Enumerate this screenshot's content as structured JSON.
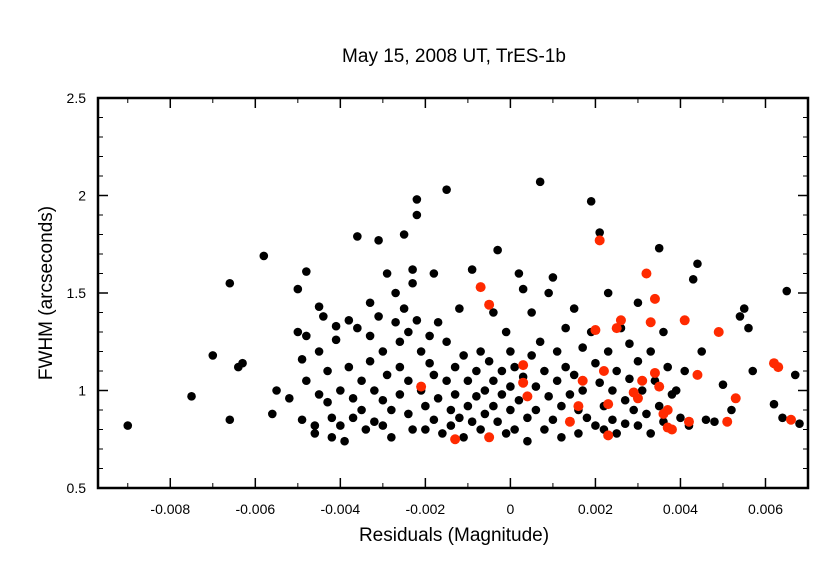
{
  "chart_data": {
    "type": "scatter",
    "title": "May 15, 2008 UT, TrES-1b",
    "xlabel": "Residuals (Magnitude)",
    "ylabel": "FWHM (arcseconds)",
    "xlim": [
      -0.0097,
      0.007
    ],
    "ylim": [
      0.5,
      2.5
    ],
    "x_ticks": [
      -0.008,
      -0.006,
      -0.004,
      -0.002,
      0,
      0.002,
      0.004,
      0.006
    ],
    "x_tick_labels": [
      "-0.008",
      "-0.006",
      "-0.004",
      "-0.002",
      "0",
      "0.002",
      "0.004",
      "0.006"
    ],
    "y_ticks": [
      0.5,
      1,
      1.5,
      2,
      2.5
    ],
    "y_tick_labels": [
      "0.5",
      "1",
      "1.5",
      "2",
      "2.5"
    ],
    "grid": false,
    "colors": {
      "black_series": "#000000",
      "red_series": "#ff2a00"
    },
    "series": [
      {
        "color": "#000000",
        "points": [
          [
            -0.009,
            0.82
          ],
          [
            -0.0075,
            0.97
          ],
          [
            -0.007,
            1.18
          ],
          [
            -0.0066,
            1.55
          ],
          [
            -0.0066,
            0.85
          ],
          [
            -0.0064,
            1.12
          ],
          [
            -0.0063,
            1.14
          ],
          [
            -0.0058,
            1.69
          ],
          [
            -0.0056,
            0.88
          ],
          [
            -0.0055,
            1.0
          ],
          [
            -0.0052,
            0.96
          ],
          [
            -0.005,
            1.52
          ],
          [
            -0.005,
            1.3
          ],
          [
            -0.0049,
            1.16
          ],
          [
            -0.0049,
            0.85
          ],
          [
            -0.0048,
            1.61
          ],
          [
            -0.0048,
            1.28
          ],
          [
            -0.0048,
            1.05
          ],
          [
            -0.0046,
            0.82
          ],
          [
            -0.0046,
            0.78
          ],
          [
            -0.0045,
            1.43
          ],
          [
            -0.0045,
            1.2
          ],
          [
            -0.0045,
            0.98
          ],
          [
            -0.0044,
            1.38
          ],
          [
            -0.0043,
            1.1
          ],
          [
            -0.0043,
            0.94
          ],
          [
            -0.0042,
            0.86
          ],
          [
            -0.0042,
            0.76
          ],
          [
            -0.0041,
            1.33
          ],
          [
            -0.0041,
            1.26
          ],
          [
            -0.004,
            1.0
          ],
          [
            -0.004,
            0.82
          ],
          [
            -0.0039,
            0.74
          ],
          [
            -0.0038,
            1.36
          ],
          [
            -0.0038,
            1.12
          ],
          [
            -0.0037,
            0.96
          ],
          [
            -0.0037,
            0.86
          ],
          [
            -0.0036,
            1.79
          ],
          [
            -0.0036,
            1.32
          ],
          [
            -0.0035,
            1.05
          ],
          [
            -0.0035,
            0.9
          ],
          [
            -0.0034,
            0.8
          ],
          [
            -0.0033,
            1.45
          ],
          [
            -0.0033,
            1.28
          ],
          [
            -0.0033,
            1.15
          ],
          [
            -0.0032,
            1.0
          ],
          [
            -0.0032,
            0.84
          ],
          [
            -0.0031,
            1.77
          ],
          [
            -0.0031,
            1.38
          ],
          [
            -0.003,
            1.2
          ],
          [
            -0.003,
            0.95
          ],
          [
            -0.003,
            0.82
          ],
          [
            -0.0029,
            1.6
          ],
          [
            -0.0029,
            1.08
          ],
          [
            -0.0028,
            0.9
          ],
          [
            -0.0028,
            0.76
          ],
          [
            -0.0027,
            1.5
          ],
          [
            -0.0027,
            1.35
          ],
          [
            -0.0026,
            1.25
          ],
          [
            -0.0026,
            1.12
          ],
          [
            -0.0026,
            0.98
          ],
          [
            -0.0025,
            1.8
          ],
          [
            -0.0025,
            1.42
          ],
          [
            -0.0024,
            1.3
          ],
          [
            -0.0024,
            1.05
          ],
          [
            -0.0024,
            0.88
          ],
          [
            -0.0023,
            1.62
          ],
          [
            -0.0023,
            1.55
          ],
          [
            -0.0023,
            0.8
          ],
          [
            -0.0022,
            1.98
          ],
          [
            -0.0022,
            1.9
          ],
          [
            -0.0022,
            1.36
          ],
          [
            -0.0021,
            1.2
          ],
          [
            -0.0021,
            1.0
          ],
          [
            -0.002,
            0.92
          ],
          [
            -0.002,
            0.8
          ],
          [
            -0.0019,
            1.28
          ],
          [
            -0.0019,
            1.14
          ],
          [
            -0.0018,
            1.6
          ],
          [
            -0.0018,
            1.08
          ],
          [
            -0.0018,
            0.85
          ],
          [
            -0.0017,
            1.35
          ],
          [
            -0.0017,
            0.96
          ],
          [
            -0.0016,
            0.78
          ],
          [
            -0.0015,
            2.03
          ],
          [
            -0.0015,
            1.25
          ],
          [
            -0.0015,
            1.05
          ],
          [
            -0.0014,
            0.9
          ],
          [
            -0.0014,
            0.82
          ],
          [
            -0.0013,
            1.12
          ],
          [
            -0.0013,
            0.98
          ],
          [
            -0.0012,
            1.42
          ],
          [
            -0.0012,
            0.86
          ],
          [
            -0.0011,
            1.18
          ],
          [
            -0.0011,
            0.76
          ],
          [
            -0.001,
            1.05
          ],
          [
            -0.001,
            0.92
          ],
          [
            -0.0009,
            1.62
          ],
          [
            -0.0009,
            0.84
          ],
          [
            -0.0008,
            1.1
          ],
          [
            -0.0008,
            0.97
          ],
          [
            -0.0007,
            1.2
          ],
          [
            -0.0007,
            0.8
          ],
          [
            -0.0006,
            1.0
          ],
          [
            -0.0006,
            0.88
          ],
          [
            -0.0005,
            1.15
          ],
          [
            -0.0005,
            0.76
          ],
          [
            -0.0004,
            1.4
          ],
          [
            -0.0004,
            1.05
          ],
          [
            -0.0004,
            0.92
          ],
          [
            -0.0003,
            1.72
          ],
          [
            -0.0003,
            0.84
          ],
          [
            -0.0002,
            1.1
          ],
          [
            -0.0002,
            0.98
          ],
          [
            -0.0001,
            1.3
          ],
          [
            -0.0001,
            0.78
          ],
          [
            0.0,
            1.2
          ],
          [
            0.0,
            1.02
          ],
          [
            0.0,
            0.9
          ],
          [
            0.0001,
            1.12
          ],
          [
            0.0001,
            0.8
          ],
          [
            0.0002,
            1.6
          ],
          [
            0.0002,
            0.95
          ],
          [
            0.0003,
            1.52
          ],
          [
            0.0003,
            1.07
          ],
          [
            0.0004,
            0.86
          ],
          [
            0.0004,
            0.74
          ],
          [
            0.0005,
            1.4
          ],
          [
            0.0005,
            1.18
          ],
          [
            0.0006,
            1.02
          ],
          [
            0.0006,
            0.9
          ],
          [
            0.0007,
            2.07
          ],
          [
            0.0007,
            1.25
          ],
          [
            0.0008,
            1.1
          ],
          [
            0.0008,
            0.8
          ],
          [
            0.0009,
            1.5
          ],
          [
            0.0009,
            0.97
          ],
          [
            0.001,
            1.58
          ],
          [
            0.001,
            0.85
          ],
          [
            0.0011,
            1.2
          ],
          [
            0.0011,
            1.05
          ],
          [
            0.0012,
            0.92
          ],
          [
            0.0012,
            0.76
          ],
          [
            0.0013,
            1.32
          ],
          [
            0.0013,
            1.12
          ],
          [
            0.0014,
            0.98
          ],
          [
            0.0014,
            0.84
          ],
          [
            0.0015,
            1.42
          ],
          [
            0.0015,
            1.08
          ],
          [
            0.0016,
            0.9
          ],
          [
            0.0016,
            0.78
          ],
          [
            0.0017,
            1.22
          ],
          [
            0.0017,
            1.0
          ],
          [
            0.0018,
            0.86
          ],
          [
            0.0019,
            1.97
          ],
          [
            0.0019,
            1.3
          ],
          [
            0.002,
            1.14
          ],
          [
            0.002,
            0.82
          ],
          [
            0.0021,
            1.81
          ],
          [
            0.0021,
            1.04
          ],
          [
            0.0022,
            0.92
          ],
          [
            0.0022,
            0.8
          ],
          [
            0.0023,
            1.5
          ],
          [
            0.0023,
            1.2
          ],
          [
            0.0024,
            1.0
          ],
          [
            0.0024,
            0.85
          ],
          [
            0.0025,
            1.1
          ],
          [
            0.0025,
            0.78
          ],
          [
            0.0026,
            1.32
          ],
          [
            0.0027,
            0.95
          ],
          [
            0.0027,
            0.83
          ],
          [
            0.0028,
            1.24
          ],
          [
            0.0028,
            1.06
          ],
          [
            0.0029,
            0.9
          ],
          [
            0.003,
            1.45
          ],
          [
            0.003,
            1.15
          ],
          [
            0.003,
            0.82
          ],
          [
            0.0031,
            1.0
          ],
          [
            0.0032,
            0.88
          ],
          [
            0.0033,
            1.2
          ],
          [
            0.0033,
            0.78
          ],
          [
            0.0034,
            1.05
          ],
          [
            0.0035,
            1.73
          ],
          [
            0.0035,
            0.92
          ],
          [
            0.0036,
            1.3
          ],
          [
            0.0036,
            0.84
          ],
          [
            0.0037,
            1.12
          ],
          [
            0.0038,
            0.98
          ],
          [
            0.0039,
            1.0
          ],
          [
            0.004,
            0.86
          ],
          [
            0.0041,
            1.1
          ],
          [
            0.0042,
            0.82
          ],
          [
            0.0043,
            1.57
          ],
          [
            0.0044,
            1.65
          ],
          [
            0.0045,
            1.2
          ],
          [
            0.0046,
            0.85
          ],
          [
            0.0048,
            0.84
          ],
          [
            0.005,
            1.03
          ],
          [
            0.0052,
            0.9
          ],
          [
            0.0054,
            1.38
          ],
          [
            0.0055,
            1.42
          ],
          [
            0.0056,
            1.32
          ],
          [
            0.0057,
            1.1
          ],
          [
            0.0062,
            0.93
          ],
          [
            0.0064,
            0.86
          ],
          [
            0.0065,
            1.51
          ],
          [
            0.0067,
            1.08
          ],
          [
            0.0068,
            0.83
          ]
        ]
      },
      {
        "color": "#ff2a00",
        "points": [
          [
            -0.0021,
            1.02
          ],
          [
            -0.0013,
            0.75
          ],
          [
            -0.0007,
            1.53
          ],
          [
            -0.0005,
            1.44
          ],
          [
            -0.0005,
            0.76
          ],
          [
            0.0003,
            1.13
          ],
          [
            0.0003,
            1.04
          ],
          [
            0.0004,
            0.97
          ],
          [
            0.0014,
            0.84
          ],
          [
            0.0017,
            1.05
          ],
          [
            0.0016,
            0.92
          ],
          [
            0.0021,
            1.77
          ],
          [
            0.002,
            1.31
          ],
          [
            0.0022,
            1.1
          ],
          [
            0.0023,
            0.93
          ],
          [
            0.0023,
            0.77
          ],
          [
            0.0025,
            1.32
          ],
          [
            0.0026,
            1.36
          ],
          [
            0.0029,
            0.99
          ],
          [
            0.003,
            0.96
          ],
          [
            0.0031,
            1.05
          ],
          [
            0.0032,
            1.6
          ],
          [
            0.0033,
            1.35
          ],
          [
            0.0034,
            1.47
          ],
          [
            0.0034,
            1.09
          ],
          [
            0.0035,
            1.02
          ],
          [
            0.0036,
            0.88
          ],
          [
            0.0037,
            0.9
          ],
          [
            0.0037,
            0.81
          ],
          [
            0.0038,
            0.8
          ],
          [
            0.0041,
            1.36
          ],
          [
            0.0042,
            0.84
          ],
          [
            0.0044,
            1.08
          ],
          [
            0.0049,
            1.3
          ],
          [
            0.0051,
            0.84
          ],
          [
            0.0053,
            0.96
          ],
          [
            0.0062,
            1.14
          ],
          [
            0.0063,
            1.12
          ],
          [
            0.0066,
            0.85
          ]
        ]
      }
    ]
  }
}
